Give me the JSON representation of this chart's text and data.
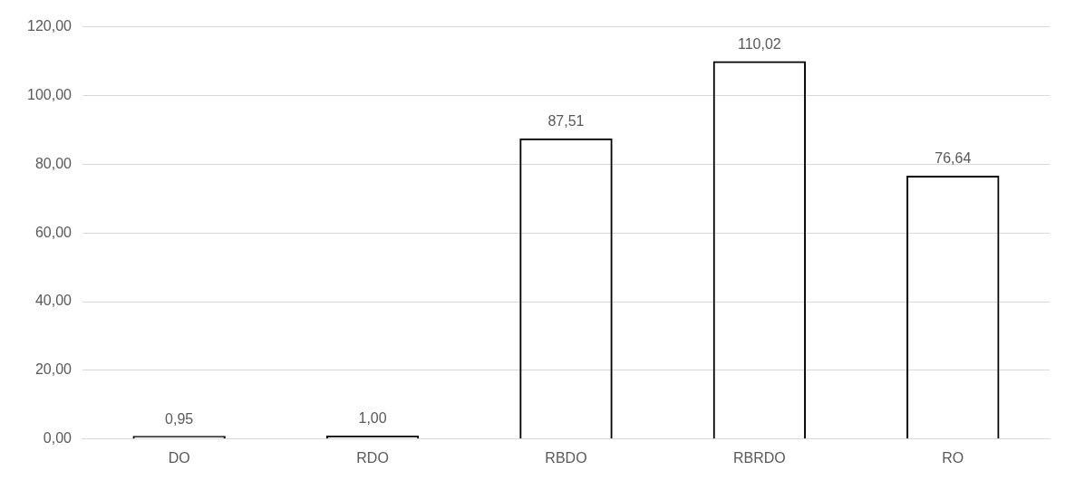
{
  "chart_data": {
    "type": "bar",
    "categories": [
      "DO",
      "RDO",
      "RBDO",
      "RBRDO",
      "RO"
    ],
    "values": [
      0.95,
      1.0,
      87.51,
      110.02,
      76.64
    ],
    "value_labels": [
      "0,95",
      "1,00",
      "87,51",
      "110,02",
      "76,64"
    ],
    "color": "#000000",
    "ylim": [
      0,
      120
    ],
    "yticks": [
      {
        "value": 0,
        "label": "0,00"
      },
      {
        "value": 20,
        "label": "20,00"
      },
      {
        "value": 40,
        "label": "40,00"
      },
      {
        "value": 60,
        "label": "60,00"
      },
      {
        "value": 80,
        "label": "80,00"
      },
      {
        "value": 100,
        "label": "100,00"
      },
      {
        "value": 120,
        "label": "120,00"
      }
    ],
    "grid": "y",
    "legend": false
  }
}
